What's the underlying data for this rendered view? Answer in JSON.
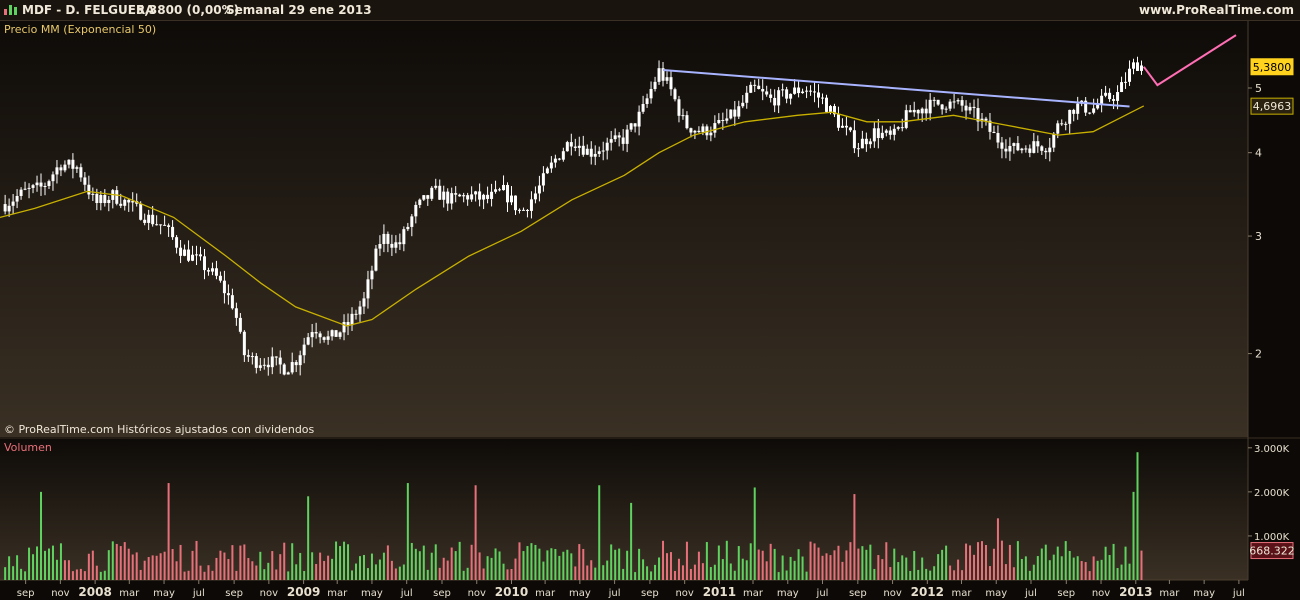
{
  "header": {
    "ticker": "MDF - D. FELGUERA",
    "price_change": "5,3800 (0,00%)",
    "period_date": "Semanal  29 ene 2013",
    "site": "www.ProRealTime.com"
  },
  "price_panel": {
    "label": "Precio MM (Exponencial 50)",
    "copyright": "© ProRealTime.com  Históricos ajustados con dividendos",
    "last_price_tag": "5,3800",
    "ema_tag": "4,6963"
  },
  "volume_panel": {
    "label": "Volumen",
    "last_volume_tag": "668.322"
  },
  "colors": {
    "background": "#0c0906",
    "panel_gradient_top": "#0e0b08",
    "panel_gradient_bottom": "#3a3024",
    "candles": "#ffffff",
    "ema": "#c8b000",
    "trendline": "#a8b4ff",
    "projection": "#ff6eb4",
    "volume_up": "#5fd35f",
    "volume_down": "#e8707a",
    "price_tag_bg": "#ffd21e",
    "ema_tag_bg": "#2a220e",
    "volume_tag_bg": "#5a1218"
  },
  "chart_data": [
    {
      "type": "candlestick",
      "title": "MDF - D. FELGUERA",
      "subtitle": "Semanal  29 ene 2013",
      "scale": "log",
      "ylim": [
        1.5,
        6.3
      ],
      "xlim": [
        "2007-08-01",
        "2013-07-31"
      ],
      "ytick_values": [
        2,
        3,
        4,
        5
      ],
      "ytick_labels": [
        "2",
        "3",
        "4",
        "5"
      ],
      "month_ticks": [
        {
          "date": "2007-09-15",
          "label": "sep"
        },
        {
          "date": "2007-11-15",
          "label": "nov"
        },
        {
          "date": "2008-01-15",
          "label": "2008"
        },
        {
          "date": "2008-03-15",
          "label": "mar"
        },
        {
          "date": "2008-05-15",
          "label": "may"
        },
        {
          "date": "2008-07-15",
          "label": "jul"
        },
        {
          "date": "2008-09-15",
          "label": "sep"
        },
        {
          "date": "2008-11-15",
          "label": "nov"
        },
        {
          "date": "2009-01-15",
          "label": "2009"
        },
        {
          "date": "2009-03-15",
          "label": "mar"
        },
        {
          "date": "2009-05-15",
          "label": "may"
        },
        {
          "date": "2009-07-15",
          "label": "jul"
        },
        {
          "date": "2009-09-15",
          "label": "sep"
        },
        {
          "date": "2009-11-15",
          "label": "nov"
        },
        {
          "date": "2010-01-15",
          "label": "2010"
        },
        {
          "date": "2010-03-15",
          "label": "mar"
        },
        {
          "date": "2010-05-15",
          "label": "may"
        },
        {
          "date": "2010-07-15",
          "label": "jul"
        },
        {
          "date": "2010-09-15",
          "label": "sep"
        },
        {
          "date": "2010-11-15",
          "label": "nov"
        },
        {
          "date": "2011-01-15",
          "label": "2011"
        },
        {
          "date": "2011-03-15",
          "label": "mar"
        },
        {
          "date": "2011-05-15",
          "label": "may"
        },
        {
          "date": "2011-07-15",
          "label": "jul"
        },
        {
          "date": "2011-09-15",
          "label": "sep"
        },
        {
          "date": "2011-11-15",
          "label": "nov"
        },
        {
          "date": "2012-01-15",
          "label": "2012"
        },
        {
          "date": "2012-03-15",
          "label": "mar"
        },
        {
          "date": "2012-05-15",
          "label": "may"
        },
        {
          "date": "2012-07-15",
          "label": "jul"
        },
        {
          "date": "2012-09-15",
          "label": "sep"
        },
        {
          "date": "2012-11-15",
          "label": "nov"
        },
        {
          "date": "2013-01-15",
          "label": "2013"
        },
        {
          "date": "2013-03-15",
          "label": "mar"
        },
        {
          "date": "2013-05-15",
          "label": "may"
        },
        {
          "date": "2013-07-15",
          "label": "jul"
        }
      ],
      "price_anchors": [
        [
          "2007-08-10",
          3.35
        ],
        [
          "2007-09-15",
          3.5
        ],
        [
          "2007-10-15",
          3.55
        ],
        [
          "2007-11-15",
          3.85
        ],
        [
          "2007-12-15",
          3.8
        ],
        [
          "2008-01-15",
          3.35
        ],
        [
          "2008-02-15",
          3.45
        ],
        [
          "2008-03-15",
          3.35
        ],
        [
          "2008-04-15",
          3.2
        ],
        [
          "2008-05-15",
          3.1
        ],
        [
          "2008-06-15",
          2.85
        ],
        [
          "2008-07-15",
          2.75
        ],
        [
          "2008-08-15",
          2.6
        ],
        [
          "2008-09-15",
          2.35
        ],
        [
          "2008-10-01",
          2.0
        ],
        [
          "2008-10-20",
          1.95
        ],
        [
          "2008-11-15",
          1.95
        ],
        [
          "2008-12-15",
          1.9
        ],
        [
          "2009-01-01",
          1.95
        ],
        [
          "2009-02-01",
          2.2
        ],
        [
          "2009-03-01",
          2.1
        ],
        [
          "2009-04-01",
          2.2
        ],
        [
          "2009-05-01",
          2.4
        ],
        [
          "2009-06-01",
          3.0
        ],
        [
          "2009-07-01",
          2.9
        ],
        [
          "2009-08-01",
          3.3
        ],
        [
          "2009-09-01",
          3.5
        ],
        [
          "2009-10-01",
          3.4
        ],
        [
          "2009-11-01",
          3.45
        ],
        [
          "2009-12-01",
          3.4
        ],
        [
          "2010-01-01",
          3.5
        ],
        [
          "2010-02-01",
          3.25
        ],
        [
          "2010-03-01",
          3.5
        ],
        [
          "2010-04-01",
          3.9
        ],
        [
          "2010-05-01",
          4.2
        ],
        [
          "2010-06-01",
          4.0
        ],
        [
          "2010-07-01",
          4.1
        ],
        [
          "2010-08-01",
          4.2
        ],
        [
          "2010-09-01",
          4.6
        ],
        [
          "2010-10-01",
          5.3
        ],
        [
          "2010-10-20",
          5.0
        ],
        [
          "2010-11-15",
          4.4
        ],
        [
          "2010-12-15",
          4.3
        ],
        [
          "2011-01-15",
          4.4
        ],
        [
          "2011-02-15",
          4.6
        ],
        [
          "2011-03-15",
          5.0
        ],
        [
          "2011-04-15",
          4.8
        ],
        [
          "2011-05-15",
          4.9
        ],
        [
          "2011-06-15",
          5.0
        ],
        [
          "2011-07-15",
          4.8
        ],
        [
          "2011-08-15",
          4.4
        ],
        [
          "2011-09-15",
          4.1
        ],
        [
          "2011-10-15",
          4.3
        ],
        [
          "2011-11-15",
          4.2
        ],
        [
          "2011-12-15",
          4.6
        ],
        [
          "2012-01-15",
          4.7
        ],
        [
          "2012-02-15",
          4.75
        ],
        [
          "2012-03-15",
          4.7
        ],
        [
          "2012-04-15",
          4.5
        ],
        [
          "2012-05-15",
          4.2
        ],
        [
          "2012-06-15",
          4.05
        ],
        [
          "2012-07-15",
          4.1
        ],
        [
          "2012-08-15",
          4.1
        ],
        [
          "2012-09-01",
          4.4
        ],
        [
          "2012-10-01",
          4.7
        ],
        [
          "2012-11-01",
          4.65
        ],
        [
          "2012-11-20",
          4.8
        ],
        [
          "2012-12-15",
          4.9
        ],
        [
          "2013-01-05",
          5.3
        ],
        [
          "2013-01-15",
          5.45
        ],
        [
          "2013-01-29",
          5.38
        ]
      ],
      "ema50_anchors": [
        [
          "2007-08-01",
          3.2
        ],
        [
          "2007-10-01",
          3.3
        ],
        [
          "2008-01-01",
          3.5
        ],
        [
          "2008-03-01",
          3.45
        ],
        [
          "2008-06-01",
          3.2
        ],
        [
          "2008-09-01",
          2.8
        ],
        [
          "2008-11-01",
          2.55
        ],
        [
          "2009-01-01",
          2.35
        ],
        [
          "2009-04-01",
          2.2
        ],
        [
          "2009-05-15",
          2.25
        ],
        [
          "2009-08-01",
          2.5
        ],
        [
          "2009-11-01",
          2.8
        ],
        [
          "2010-02-01",
          3.05
        ],
        [
          "2010-05-01",
          3.4
        ],
        [
          "2010-08-01",
          3.7
        ],
        [
          "2010-10-01",
          4.0
        ],
        [
          "2010-12-01",
          4.25
        ],
        [
          "2011-03-01",
          4.45
        ],
        [
          "2011-06-01",
          4.55
        ],
        [
          "2011-08-01",
          4.6
        ],
        [
          "2011-10-01",
          4.45
        ],
        [
          "2011-12-01",
          4.45
        ],
        [
          "2012-03-01",
          4.55
        ],
        [
          "2012-06-01",
          4.4
        ],
        [
          "2012-09-01",
          4.25
        ],
        [
          "2012-11-01",
          4.3
        ],
        [
          "2013-01-29",
          4.7
        ]
      ],
      "trendline": [
        [
          "2010-10-08",
          5.32
        ],
        [
          "2013-01-04",
          4.69
        ]
      ],
      "projection": [
        [
          "2013-01-29",
          5.38
        ],
        [
          "2013-02-22",
          5.05
        ],
        [
          "2013-07-10",
          6.0
        ]
      ],
      "last_price": 5.38,
      "ema50_last": 4.6963,
      "grid": false,
      "legend": "top-left"
    },
    {
      "type": "bar",
      "title": "Volumen",
      "ylim": [
        0,
        3200000
      ],
      "ytick_values": [
        1000000,
        2000000,
        3000000
      ],
      "ytick_labels": [
        "1.000K",
        "2.000K",
        "3.000K"
      ],
      "last_volume": 668322,
      "typical_volume": 600000,
      "notable_bars": [
        [
          "2007-10-10",
          2000000
        ],
        [
          "2008-05-25",
          2200000
        ],
        [
          "2009-01-20",
          1900000
        ],
        [
          "2009-07-20",
          2200000
        ],
        [
          "2009-11-10",
          2150000
        ],
        [
          "2010-06-20",
          2150000
        ],
        [
          "2010-08-15",
          1750000
        ],
        [
          "2011-03-20",
          2100000
        ],
        [
          "2011-09-10",
          1950000
        ],
        [
          "2012-05-20",
          1400000
        ],
        [
          "2013-01-20",
          2900000
        ],
        [
          "2013-01-10",
          2000000
        ]
      ],
      "grid": false
    }
  ]
}
